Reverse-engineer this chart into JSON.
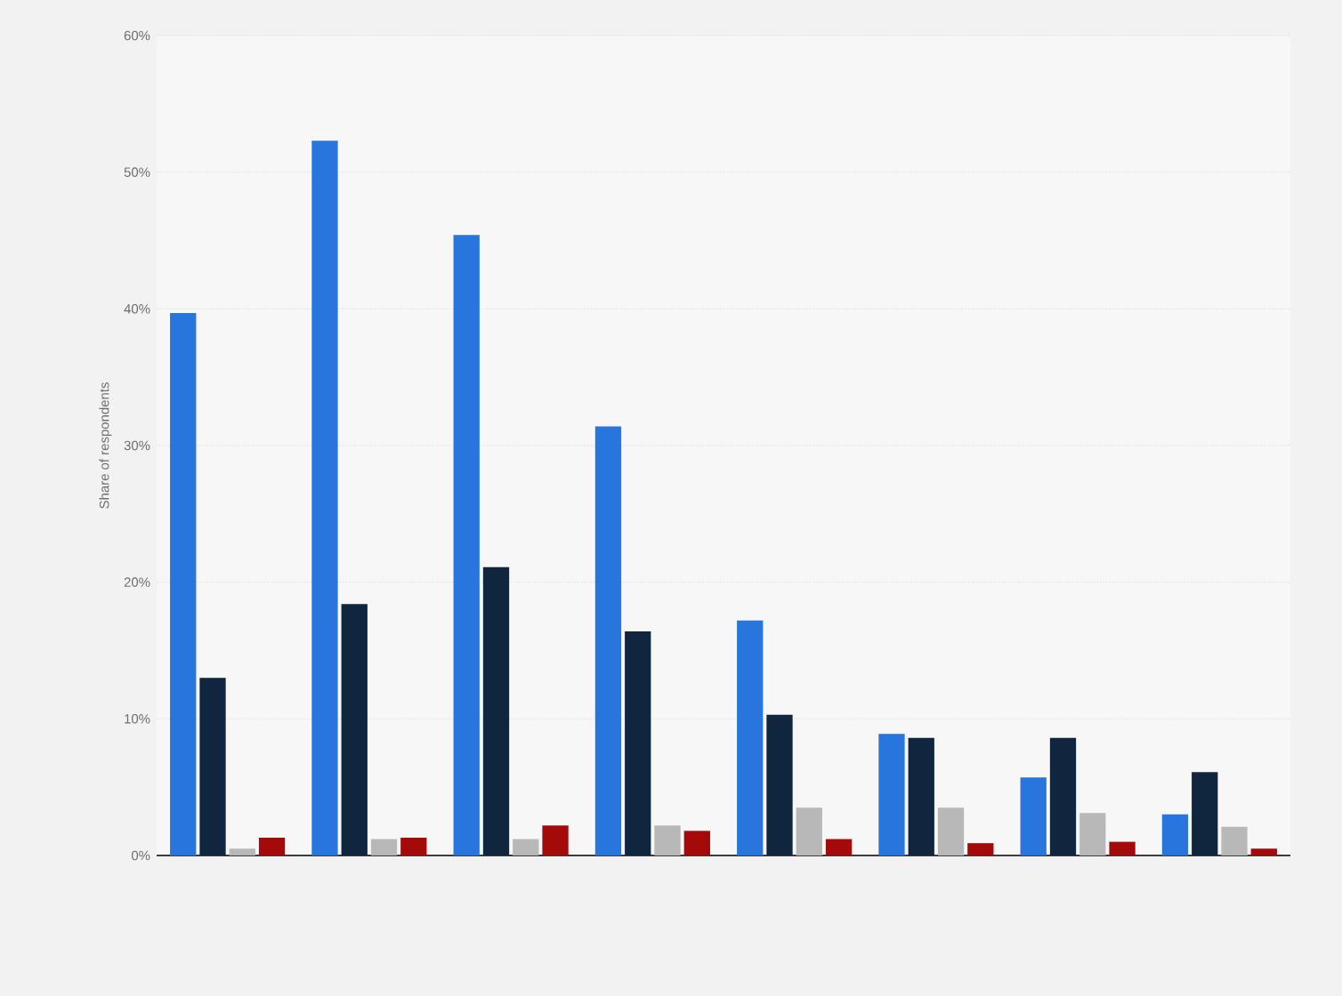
{
  "chart_data": {
    "type": "bar",
    "ylabel": "Share of respondents",
    "categories": [
      null,
      null,
      null,
      null,
      null,
      null,
      null,
      null
    ],
    "series": [
      {
        "color": "#2876dd",
        "values": [
          39.7,
          52.3,
          45.4,
          31.4,
          17.2,
          8.9,
          5.7,
          3.0
        ]
      },
      {
        "color": "#10253e",
        "values": [
          13.0,
          18.4,
          21.1,
          16.4,
          10.3,
          8.6,
          8.6,
          6.1
        ]
      },
      {
        "color": "#b8b8b8",
        "values": [
          0.5,
          1.2,
          1.2,
          2.2,
          3.5,
          3.5,
          3.1,
          2.1
        ]
      },
      {
        "color": "#a50a0b",
        "values": [
          1.3,
          1.3,
          2.2,
          1.8,
          1.2,
          0.9,
          1.0,
          0.5
        ]
      }
    ],
    "ylim": [
      0,
      60
    ],
    "yticks": [
      {
        "value": 0,
        "label": "0%"
      },
      {
        "value": 10,
        "label": "10%"
      },
      {
        "value": 20,
        "label": "20%"
      },
      {
        "value": 30,
        "label": "30%"
      },
      {
        "value": 40,
        "label": "40%"
      },
      {
        "value": 50,
        "label": "50%"
      },
      {
        "value": 60,
        "label": "60%"
      }
    ],
    "grid": "y",
    "legend": false
  }
}
